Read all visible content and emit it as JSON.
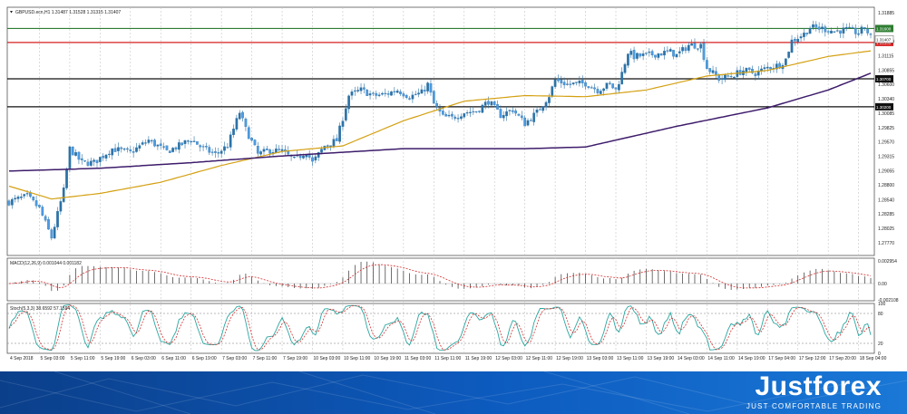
{
  "chart_data": {
    "type": "candlestick",
    "symbol_header": "GBPUSD.ecn,H1  1.31487 1.31528 1.31315 1.31407",
    "last_price": 1.31407,
    "price_axis": {
      "ylim": [
        1.2754,
        1.3198
      ],
      "tick_labels": [
        "1.31885",
        "1.31370",
        "1.31115",
        "1.30855",
        "1.30600",
        "1.30340",
        "1.30085",
        "1.29825",
        "1.29570",
        "1.29315",
        "1.29055",
        "1.28800",
        "1.28540",
        "1.28285",
        "1.28025",
        "1.27770"
      ]
    },
    "horizontal_levels": [
      {
        "value": 1.316,
        "label": "1.31600",
        "color": "#2e7d32"
      },
      {
        "value": 1.3135,
        "label": "1.31350",
        "color": "#d62020"
      },
      {
        "value": 1.307,
        "label": "1.30700",
        "color": "#111111"
      },
      {
        "value": 1.302,
        "label": "1.30200",
        "color": "#111111"
      }
    ],
    "time_axis": [
      "4 Sep 2018",
      "5 Sep 03:00",
      "5 Sep 11:00",
      "5 Sep 19:00",
      "6 Sep 03:00",
      "6 Sep 11:00",
      "6 Sep 19:00",
      "7 Sep 03:00",
      "7 Sep 11:00",
      "7 Sep 19:00",
      "10 Sep 03:00",
      "10 Sep 11:00",
      "10 Sep 19:00",
      "11 Sep 03:00",
      "11 Sep 11:00",
      "11 Sep 19:00",
      "12 Sep 03:00",
      "12 Sep 11:00",
      "12 Sep 19:00",
      "13 Sep 03:00",
      "13 Sep 11:00",
      "13 Sep 19:00",
      "14 Sep 03:00",
      "14 Sep 11:00",
      "14 Sep 19:00",
      "17 Sep 04:00",
      "17 Sep 12:00",
      "17 Sep 20:00",
      "18 Sep 04:00"
    ],
    "price_path": [
      [
        0,
        1.285
      ],
      [
        6,
        1.286
      ],
      [
        10,
        1.2838
      ],
      [
        14,
        1.2786
      ],
      [
        18,
        1.287
      ],
      [
        20,
        1.2945
      ],
      [
        24,
        1.292
      ],
      [
        28,
        1.292
      ],
      [
        34,
        1.2945
      ],
      [
        40,
        1.2938
      ],
      [
        46,
        1.296
      ],
      [
        52,
        1.294
      ],
      [
        56,
        1.295
      ],
      [
        60,
        1.2962
      ],
      [
        64,
        1.2945
      ],
      [
        68,
        1.2935
      ],
      [
        72,
        1.295
      ],
      [
        76,
        1.301
      ],
      [
        78,
        1.298
      ],
      [
        82,
        1.2935
      ],
      [
        86,
        1.2942
      ],
      [
        90,
        1.294
      ],
      [
        94,
        1.2925
      ],
      [
        98,
        1.294
      ],
      [
        100,
        1.292
      ],
      [
        104,
        1.295
      ],
      [
        108,
        1.296
      ],
      [
        112,
        1.304
      ],
      [
        116,
        1.305
      ],
      [
        120,
        1.304
      ],
      [
        124,
        1.3042
      ],
      [
        128,
        1.305
      ],
      [
        132,
        1.3038
      ],
      [
        136,
        1.3045
      ],
      [
        138,
        1.306
      ],
      [
        140,
        1.3025
      ],
      [
        143,
        1.3002
      ],
      [
        146,
        1.3
      ],
      [
        150,
        1.301
      ],
      [
        154,
        1.3012
      ],
      [
        158,
        1.303
      ],
      [
        162,
        1.3005
      ],
      [
        166,
        1.3015
      ],
      [
        170,
        1.299
      ],
      [
        174,
        1.301
      ],
      [
        178,
        1.304
      ],
      [
        180,
        1.3068
      ],
      [
        184,
        1.306
      ],
      [
        190,
        1.3062
      ],
      [
        194,
        1.305
      ],
      [
        198,
        1.306
      ],
      [
        200,
        1.305
      ],
      [
        202,
        1.308
      ],
      [
        204,
        1.3118
      ],
      [
        206,
        1.311
      ],
      [
        210,
        1.3112
      ],
      [
        214,
        1.3115
      ],
      [
        218,
        1.3118
      ],
      [
        220,
        1.3112
      ],
      [
        224,
        1.313
      ],
      [
        228,
        1.313
      ],
      [
        230,
        1.309
      ],
      [
        234,
        1.307
      ],
      [
        238,
        1.3075
      ],
      [
        242,
        1.3085
      ],
      [
        246,
        1.308
      ],
      [
        250,
        1.309
      ],
      [
        254,
        1.3095
      ],
      [
        256,
        1.3105
      ],
      [
        258,
        1.3138
      ],
      [
        262,
        1.315
      ],
      [
        264,
        1.3162
      ],
      [
        268,
        1.316
      ],
      [
        272,
        1.3155
      ],
      [
        276,
        1.3158
      ],
      [
        280,
        1.3152
      ],
      [
        282,
        1.3162
      ],
      [
        284,
        1.3145
      ]
    ],
    "ma_fast": [
      [
        0,
        1.2878
      ],
      [
        14,
        1.2855
      ],
      [
        30,
        1.2865
      ],
      [
        50,
        1.2885
      ],
      [
        70,
        1.2915
      ],
      [
        90,
        1.294
      ],
      [
        110,
        1.295
      ],
      [
        130,
        1.2995
      ],
      [
        150,
        1.303
      ],
      [
        170,
        1.304
      ],
      [
        190,
        1.3038
      ],
      [
        210,
        1.305
      ],
      [
        230,
        1.3075
      ],
      [
        250,
        1.3085
      ],
      [
        270,
        1.311
      ],
      [
        284,
        1.312
      ]
    ],
    "ma_slow": [
      [
        0,
        1.2905
      ],
      [
        30,
        1.291
      ],
      [
        60,
        1.292
      ],
      [
        90,
        1.2932
      ],
      [
        130,
        1.2945
      ],
      [
        170,
        1.2945
      ],
      [
        190,
        1.2948
      ],
      [
        220,
        1.2985
      ],
      [
        250,
        1.3018
      ],
      [
        270,
        1.305
      ],
      [
        284,
        1.308
      ]
    ],
    "macd": {
      "label": "MACD(12,26,9) 0.001044 0.001182",
      "ylim": [
        -0.00224,
        0.0033
      ],
      "ticks": [
        "0.002954",
        "0.00",
        "-0.002108"
      ]
    },
    "stoch": {
      "label": "Stoch(5,3,3) 38.6592 57.1594",
      "ylim": [
        0,
        100
      ],
      "ticks": [
        "100",
        "80",
        "20",
        "0"
      ]
    },
    "colors": {
      "bull": "#2c72a6",
      "bear": "#4d9be3",
      "ma_fast": "#d4a012",
      "ma_slow": "#3d1c6b",
      "k_line": "#2aa6a0",
      "d_line": "#d32f2f",
      "hist": "#333333",
      "grid": "#c6c6c6"
    }
  },
  "brand": {
    "name": "Justforex",
    "tagline": "JUST COMFORTABLE TRADING"
  }
}
